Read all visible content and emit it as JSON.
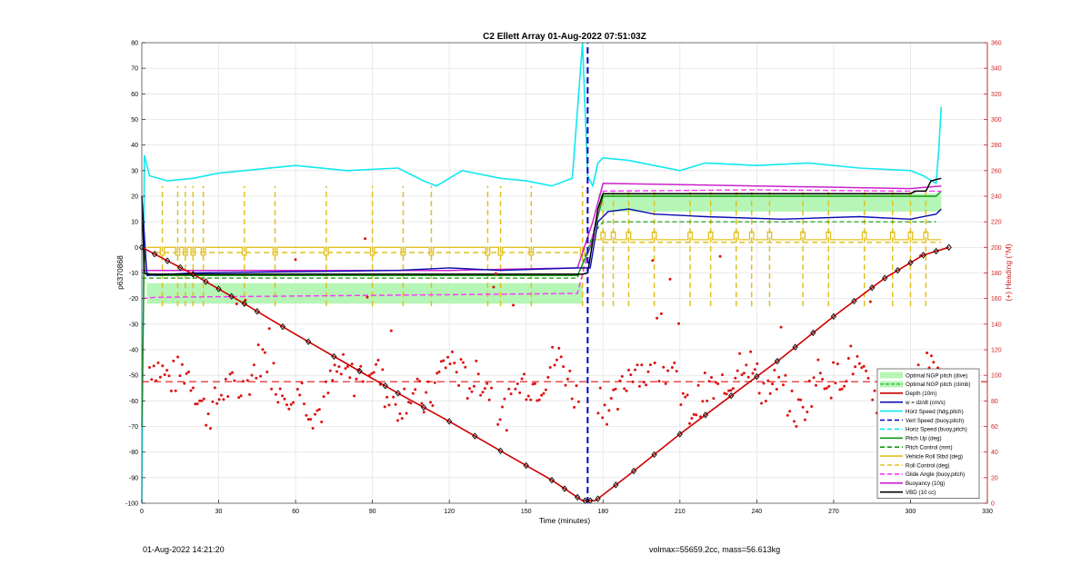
{
  "chart_data": {
    "type": "line",
    "title": "C2 Ellett Array 01-Aug-2022 07:51:03Z",
    "xlabel": "Time (minutes)",
    "ylabel": "p6370868",
    "ylabel_right": "(+) Heading (°M)",
    "xlim": [
      0,
      330
    ],
    "ylim": [
      -100,
      80
    ],
    "ylim_right": [
      0,
      360
    ],
    "xticks": [
      0,
      30,
      60,
      90,
      120,
      150,
      180,
      210,
      240,
      270,
      300,
      330
    ],
    "yticks": [
      -100,
      -90,
      -80,
      -70,
      -60,
      -50,
      -40,
      -30,
      -20,
      -10,
      0,
      10,
      20,
      30,
      40,
      50,
      60,
      70,
      80
    ],
    "yticks_right": [
      0,
      20,
      40,
      60,
      80,
      100,
      120,
      140,
      160,
      180,
      200,
      220,
      240,
      260,
      280,
      300,
      320,
      340,
      360
    ],
    "grid": true,
    "legend_position": "bottom-right",
    "colors": {
      "depth": "#cc0000",
      "heading": "#dd1111",
      "horz_speed": "#11e8f0",
      "vert_speed": "#0000cc",
      "w_dzdt": "#0a0ab0",
      "pitch": "#119911",
      "roll": "#e0c020",
      "glide": "#ff33ff",
      "buoyancy": "#cc22cc",
      "vbd": "#000000",
      "envelope": "#b5f5b5",
      "right_axis": "#cc2222"
    },
    "legend": [
      {
        "label": "Optimal NGP pitch (dive)",
        "style": "fill"
      },
      {
        "label": "Optimal NGP pitch (climb)",
        "style": "fill-dash"
      },
      {
        "label": "Depth (10m)",
        "style": "line",
        "color": "#cc0000"
      },
      {
        "label": "w = dz/dt (cm/s)",
        "style": "line",
        "color": "#0a0ab0"
      },
      {
        "label": "Horz Speed (hdg,pitch)",
        "style": "line",
        "color": "#11e8f0"
      },
      {
        "label": "Vert Speed (buoy,pitch)",
        "style": "dash",
        "color": "#0000cc"
      },
      {
        "label": "Horiz Speed (buoy,pitch)",
        "style": "dash",
        "color": "#11e8f0"
      },
      {
        "label": "Pitch Up (deg)",
        "style": "line",
        "color": "#119911"
      },
      {
        "label": "Pitch Control (mm)",
        "style": "dash",
        "color": "#119911"
      },
      {
        "label": "Vehicle Roll Stbd (deg)",
        "style": "line",
        "color": "#e0c020"
      },
      {
        "label": "Roll Control (deg)",
        "style": "dash",
        "color": "#e0c020"
      },
      {
        "label": "Glide Angle (buoy,pitch)",
        "style": "dash",
        "color": "#ff33ff"
      },
      {
        "label": "Buoyancy (10g)",
        "style": "line",
        "color": "#cc22cc"
      },
      {
        "label": "VBD (10 cc)",
        "style": "line",
        "color": "#000000"
      }
    ],
    "series": [
      {
        "name": "Depth (10m)",
        "x": [
          0,
          20,
          40,
          60,
          80,
          100,
          120,
          140,
          160,
          172,
          177,
          190,
          210,
          230,
          250,
          270,
          290,
          305,
          315
        ],
        "y": [
          0,
          -10.5,
          -22,
          -34,
          -45.5,
          -57,
          -68,
          -79.5,
          -91,
          -99,
          -99,
          -89,
          -73,
          -58,
          -43,
          -27,
          -12,
          -3,
          0
        ]
      },
      {
        "name": "Horz Speed (hdg,pitch)",
        "x": [
          0,
          1,
          3,
          10,
          20,
          30,
          40,
          60,
          80,
          100,
          110,
          115,
          125,
          130,
          140,
          150,
          160,
          168,
          172,
          174,
          175,
          176,
          178,
          180,
          190,
          200,
          210,
          220,
          240,
          260,
          280,
          300,
          305,
          310,
          311,
          312
        ],
        "y": [
          -100,
          36,
          28,
          26,
          27,
          29,
          30,
          32,
          30,
          31,
          26,
          24,
          30,
          29,
          27,
          26,
          24,
          27,
          80,
          28,
          26,
          24,
          33,
          35,
          34,
          32,
          30,
          33,
          32,
          33,
          31,
          30,
          28,
          25,
          38,
          55
        ]
      },
      {
        "name": "w = dz/dt (cm/s)",
        "x": [
          0,
          2,
          20,
          60,
          100,
          120,
          140,
          170,
          175,
          178,
          182,
          190,
          200,
          220,
          250,
          280,
          300,
          310,
          312
        ],
        "y": [
          20,
          -11,
          -10,
          -9.5,
          -9,
          -8,
          -9,
          -8,
          -8,
          10,
          14,
          15,
          13,
          12,
          11,
          12,
          11,
          13,
          15
        ]
      },
      {
        "name": "Pitch Up (deg)",
        "x": [
          0,
          1,
          2,
          5,
          170,
          175,
          180,
          310,
          312
        ],
        "y": [
          -70,
          0,
          -10,
          -11,
          -11,
          0,
          20,
          20,
          22
        ]
      },
      {
        "name": "Pitch Control (mm)",
        "x": [
          0,
          5,
          170,
          176,
          180,
          310
        ],
        "y": [
          -12,
          -12,
          -12,
          5,
          10,
          10
        ]
      },
      {
        "name": "Buoyancy (10g)",
        "x": [
          0,
          5,
          60,
          120,
          170,
          176,
          180,
          240,
          300,
          312
        ],
        "y": [
          -9,
          -9,
          -9,
          -9,
          -8,
          10,
          25,
          24,
          23,
          24
        ]
      },
      {
        "name": "Glide Angle (buoy,pitch)",
        "x": [
          0,
          5,
          60,
          120,
          170,
          176,
          180,
          240,
          300,
          312
        ],
        "y": [
          -20,
          -19.5,
          -19,
          -18.5,
          -18,
          5,
          22,
          22.5,
          22,
          22
        ]
      },
      {
        "name": "VBD (10 cc)",
        "x": [
          0,
          1,
          2,
          172,
          174,
          178,
          180,
          300,
          302,
          306,
          308,
          312
        ],
        "y": [
          20,
          -10,
          -10.5,
          -10.5,
          -10,
          15,
          21,
          21,
          22,
          22,
          26,
          27
        ]
      },
      {
        "name": "Vehicle Roll Stbd (deg)",
        "x": [
          0,
          5,
          10,
          170,
          176,
          182,
          310
        ],
        "y": [
          0,
          0,
          0,
          0,
          5,
          3,
          3
        ]
      },
      {
        "name": "Vert Speed (buoy,pitch)",
        "x": [
          174,
          174
        ],
        "y": [
          -100,
          80
        ]
      }
    ],
    "reference_lines": {
      "heading_mean_right": 95,
      "roll_control_baseline": 0,
      "envelope_dive": [
        -22,
        -14
      ],
      "envelope_climb": [
        14,
        21
      ]
    }
  },
  "footer": {
    "date": "01-Aug-2022 14:21:20",
    "volmax": "volmax=55659.2cc, mass=56.613kg"
  }
}
